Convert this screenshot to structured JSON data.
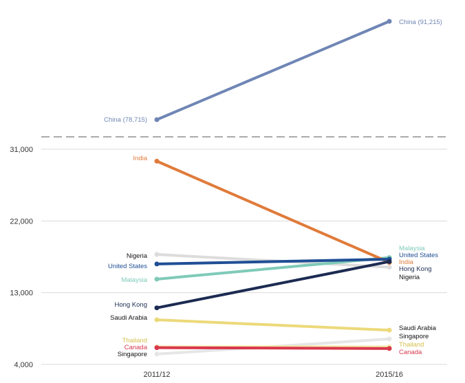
{
  "chart_data": {
    "type": "line",
    "x": [
      "2011/12",
      "2015/16"
    ],
    "y_ticks": [
      "4,000",
      "13,000",
      "22,000",
      "31,000"
    ],
    "ylim": [
      4000,
      31000
    ],
    "axis_break": true,
    "grid": true,
    "series": [
      {
        "name": "China",
        "values": [
          78715,
          91215
        ],
        "color": "#6f86b5",
        "label_left": "China (78,715)",
        "label_right": "China (91,215)"
      },
      {
        "name": "India",
        "values": [
          29500,
          16800
        ],
        "color": "#e07b3a",
        "label_left": "India",
        "label_right": "India"
      },
      {
        "name": "Nigeria",
        "values": [
          17800,
          16200
        ],
        "color": "#dcdcdc",
        "label_left": "Nigeria",
        "label_right": "Nigeria"
      },
      {
        "name": "United States",
        "values": [
          16600,
          17200
        ],
        "color": "#1f4e94",
        "label_left": "United States",
        "label_right": "United States"
      },
      {
        "name": "Malaysia",
        "values": [
          14700,
          17400
        ],
        "color": "#7fcab8",
        "label_left": "Malaysia",
        "label_right": "Malaysia"
      },
      {
        "name": "Hong Kong",
        "values": [
          11100,
          16900
        ],
        "color": "#1c2b52",
        "label_left": "Hong Kong",
        "label_right": "Hong Kong"
      },
      {
        "name": "Saudi Arabia",
        "values": [
          9600,
          8300
        ],
        "color": "#ecd97a",
        "label_left": "Saudi Arabia",
        "label_right": "Saudi Arabia"
      },
      {
        "name": "Thailand",
        "values": [
          6200,
          6200
        ],
        "color": "#f4e8a6",
        "label_left": "Thailand",
        "label_right": "Thailand"
      },
      {
        "name": "Canada",
        "values": [
          6100,
          6000
        ],
        "color": "#d9384d",
        "label_left": "Canada",
        "label_right": "Canada"
      },
      {
        "name": "Singapore",
        "values": [
          5300,
          7200
        ],
        "color": "#e6e6e6",
        "label_left": "Singapore",
        "label_right": "Singapore"
      }
    ],
    "label_colors": {
      "China": "#6f86b5",
      "India": "#e07b3a",
      "Nigeria": "#111111",
      "United States": "#1f4e94",
      "Malaysia": "#7fcab8",
      "Hong Kong": "#1c2b52",
      "Saudi Arabia": "#111111",
      "Thailand": "#d4bf4a",
      "Canada": "#d9384d",
      "Singapore": "#111111"
    },
    "label_colors_right": {
      "Nigeria": "#111111",
      "Hong Kong": "#1c2b52",
      "Malaysia": "#7fcab8"
    }
  }
}
